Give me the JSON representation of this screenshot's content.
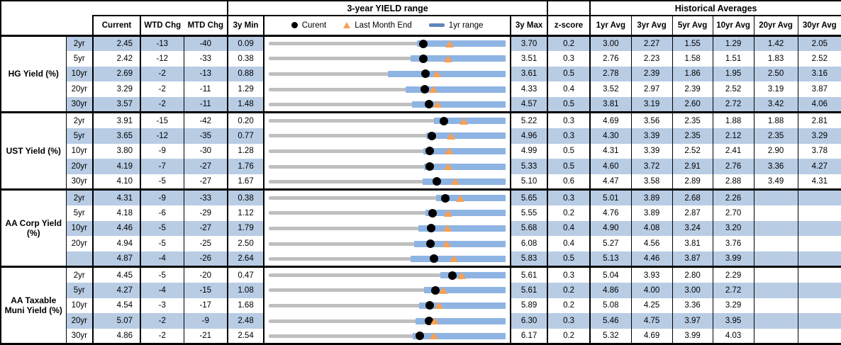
{
  "colors": {
    "stripe": "#B8CCE4",
    "bar": "#8EB4E3",
    "track": "#BFBFBF",
    "orange": "#F7A055",
    "dash": "#5E87BE",
    "dot": "#000000"
  },
  "chart_data": {
    "type": "table",
    "title": "3-year YIELD range",
    "header": {
      "range_title": "3-year YIELD range",
      "hist_title": "Historical Averages",
      "col_current": "Current",
      "col_wtd": "WTD Chg",
      "col_mtd": "MTD Chg",
      "col_3y_min": "3y Min",
      "col_3y_max": "3y Max",
      "col_zscore": "z-score",
      "avg_cols": [
        "1yr Avg",
        "3yr Avg",
        "5yr Avg",
        "10yr Avg",
        "20yr Avg",
        "30yr Avg"
      ],
      "legend": {
        "current": "Curent",
        "last_month_end": "Last Month End",
        "one_yr_range": "1yr range"
      }
    },
    "marker_note": "dot=current yield, triangle=last month end yield, blue bar=1yr range within 3y min-max track",
    "groups": [
      {
        "label": "HG Yield (%)",
        "rows": [
          {
            "tenor": "2yr",
            "current": "2.45",
            "wtd": "-13",
            "mtd": "-40",
            "min3y": "0.09",
            "max3y": "3.70",
            "z": "0.2",
            "low1y": 2.35,
            "high1y": 3.7,
            "lme": 2.85,
            "avgs": [
              "3.00",
              "2.27",
              "1.55",
              "1.29",
              "1.42",
              "2.05"
            ]
          },
          {
            "tenor": "5yr",
            "current": "2.42",
            "wtd": "-12",
            "mtd": "-33",
            "min3y": "0.38",
            "max3y": "3.51",
            "z": "0.3",
            "low1y": 2.25,
            "high1y": 3.51,
            "lme": 2.75,
            "avgs": [
              "2.76",
              "2.23",
              "1.58",
              "1.51",
              "1.83",
              "2.52"
            ]
          },
          {
            "tenor": "10yr",
            "current": "2.69",
            "wtd": "-2",
            "mtd": "-13",
            "min3y": "0.88",
            "max3y": "3.61",
            "z": "0.5",
            "low1y": 2.25,
            "high1y": 3.61,
            "lme": 2.82,
            "avgs": [
              "2.78",
              "2.39",
              "1.86",
              "1.95",
              "2.50",
              "3.16"
            ]
          },
          {
            "tenor": "20yr",
            "current": "3.29",
            "wtd": "-2",
            "mtd": "-11",
            "min3y": "1.29",
            "max3y": "4.33",
            "z": "0.4",
            "low1y": 3.05,
            "high1y": 4.33,
            "lme": 3.4,
            "avgs": [
              "3.52",
              "2.97",
              "2.39",
              "2.52",
              "3.19",
              "3.87"
            ]
          },
          {
            "tenor": "30yr",
            "current": "3.57",
            "wtd": "-2",
            "mtd": "-11",
            "min3y": "1.48",
            "max3y": "4.57",
            "z": "0.5",
            "low1y": 3.35,
            "high1y": 4.57,
            "lme": 3.68,
            "avgs": [
              "3.81",
              "3.19",
              "2.60",
              "2.72",
              "3.42",
              "4.06"
            ]
          }
        ]
      },
      {
        "label": "UST Yield (%)",
        "rows": [
          {
            "tenor": "2yr",
            "current": "3.91",
            "wtd": "-15",
            "mtd": "-42",
            "min3y": "0.20",
            "max3y": "5.22",
            "z": "0.3",
            "low1y": 3.7,
            "high1y": 5.22,
            "lme": 4.33,
            "avgs": [
              "4.69",
              "3.56",
              "2.35",
              "1.88",
              "1.88",
              "2.81"
            ]
          },
          {
            "tenor": "5yr",
            "current": "3.65",
            "wtd": "-12",
            "mtd": "-35",
            "min3y": "0.77",
            "max3y": "4.96",
            "z": "0.3",
            "low1y": 3.55,
            "high1y": 4.96,
            "lme": 4.0,
            "avgs": [
              "4.30",
              "3.39",
              "2.35",
              "2.12",
              "2.35",
              "3.29"
            ]
          },
          {
            "tenor": "10yr",
            "current": "3.80",
            "wtd": "-9",
            "mtd": "-30",
            "min3y": "1.28",
            "max3y": "4.99",
            "z": "0.5",
            "low1y": 3.7,
            "high1y": 4.99,
            "lme": 4.1,
            "avgs": [
              "4.31",
              "3.39",
              "2.52",
              "2.41",
              "2.90",
              "3.78"
            ]
          },
          {
            "tenor": "20yr",
            "current": "4.19",
            "wtd": "-7",
            "mtd": "-27",
            "min3y": "1.76",
            "max3y": "5.33",
            "z": "0.5",
            "low1y": 4.1,
            "high1y": 5.33,
            "lme": 4.46,
            "avgs": [
              "4.60",
              "3.72",
              "2.91",
              "2.76",
              "3.36",
              "4.27"
            ]
          },
          {
            "tenor": "30yr",
            "current": "4.10",
            "wtd": "-5",
            "mtd": "-27",
            "min3y": "1.67",
            "max3y": "5.10",
            "z": "0.6",
            "low1y": 3.9,
            "high1y": 5.1,
            "lme": 4.37,
            "avgs": [
              "4.47",
              "3.58",
              "2.89",
              "2.88",
              "3.49",
              "4.31"
            ]
          }
        ]
      },
      {
        "label": "AA Corp Yield (%)",
        "rows": [
          {
            "tenor": "2yr",
            "current": "4.31",
            "wtd": "-9",
            "mtd": "-33",
            "min3y": "0.38",
            "max3y": "5.65",
            "z": "0.3",
            "low1y": 4.1,
            "high1y": 5.65,
            "lme": 4.64,
            "avgs": [
              "5.01",
              "3.89",
              "2.68",
              "2.26",
              "",
              ""
            ]
          },
          {
            "tenor": "5yr",
            "current": "4.18",
            "wtd": "-6",
            "mtd": "-29",
            "min3y": "1.12",
            "max3y": "5.55",
            "z": "0.2",
            "low1y": 4.05,
            "high1y": 5.55,
            "lme": 4.47,
            "avgs": [
              "4.76",
              "3.89",
              "2.87",
              "2.70",
              "",
              ""
            ]
          },
          {
            "tenor": "10yr",
            "current": "4.46",
            "wtd": "-5",
            "mtd": "-27",
            "min3y": "1.79",
            "max3y": "5.68",
            "z": "0.4",
            "low1y": 4.25,
            "high1y": 5.68,
            "lme": 4.73,
            "avgs": [
              "4.90",
              "4.08",
              "3.24",
              "3.20",
              "",
              ""
            ]
          },
          {
            "tenor": "20yr",
            "current": "4.94",
            "wtd": "-5",
            "mtd": "-25",
            "min3y": "2.50",
            "max3y": "6.08",
            "z": "0.4",
            "low1y": 4.7,
            "high1y": 6.08,
            "lme": 5.19,
            "avgs": [
              "5.27",
              "4.56",
              "3.81",
              "3.76",
              "",
              ""
            ]
          },
          {
            "tenor": "",
            "current": "4.87",
            "wtd": "-4",
            "mtd": "-26",
            "min3y": "2.64",
            "max3y": "5.83",
            "z": "0.5",
            "low1y": 4.55,
            "high1y": 5.83,
            "lme": 5.13,
            "avgs": [
              "5.13",
              "4.46",
              "3.87",
              "3.99",
              "",
              ""
            ]
          }
        ]
      },
      {
        "label": "AA Taxable Muni Yield (%)",
        "rows": [
          {
            "tenor": "2yr",
            "current": "4.45",
            "wtd": "-5",
            "mtd": "-20",
            "min3y": "0.47",
            "max3y": "5.61",
            "z": "0.3",
            "low1y": 4.2,
            "high1y": 5.61,
            "lme": 4.65,
            "avgs": [
              "5.04",
              "3.93",
              "2.80",
              "2.29",
              "",
              ""
            ]
          },
          {
            "tenor": "5yr",
            "current": "4.27",
            "wtd": "-4",
            "mtd": "-15",
            "min3y": "1.08",
            "max3y": "5.61",
            "z": "0.2",
            "low1y": 4.05,
            "high1y": 5.61,
            "lme": 4.42,
            "avgs": [
              "4.86",
              "4.00",
              "3.00",
              "2.72",
              "",
              ""
            ]
          },
          {
            "tenor": "10yr",
            "current": "4.54",
            "wtd": "-3",
            "mtd": "-17",
            "min3y": "1.68",
            "max3y": "5.89",
            "z": "0.2",
            "low1y": 4.35,
            "high1y": 5.89,
            "lme": 4.71,
            "avgs": [
              "5.08",
              "4.25",
              "3.36",
              "3.29",
              "",
              ""
            ]
          },
          {
            "tenor": "20yr",
            "current": "5.07",
            "wtd": "-2",
            "mtd": "-9",
            "min3y": "2.48",
            "max3y": "6.30",
            "z": "0.3",
            "low1y": 4.85,
            "high1y": 6.3,
            "lme": 5.16,
            "avgs": [
              "5.46",
              "4.75",
              "3.97",
              "3.95",
              "",
              ""
            ]
          },
          {
            "tenor": "30yr",
            "current": "4.86",
            "wtd": "-2",
            "mtd": "-21",
            "min3y": "2.54",
            "max3y": "6.17",
            "z": "0.2",
            "low1y": 4.75,
            "high1y": 6.17,
            "lme": 5.07,
            "avgs": [
              "5.32",
              "4.69",
              "3.99",
              "4.03",
              "",
              ""
            ]
          }
        ]
      }
    ]
  }
}
